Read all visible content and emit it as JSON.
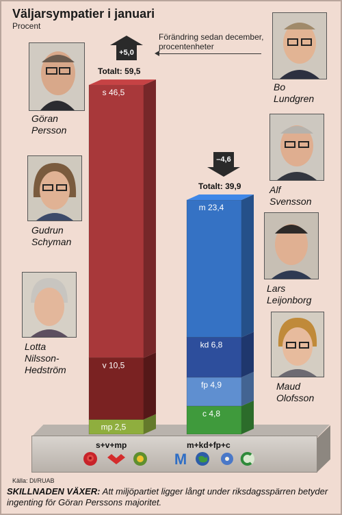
{
  "title": "Väljarsympatier i januari",
  "subtitle": "Procent",
  "change_note": "Förändring sedan december, procentenheter",
  "chart_data": {
    "type": "bar",
    "title": "Väljarsympatier i januari",
    "ylabel": "Procent",
    "categories": [
      "s+v+mp",
      "m+kd+fp+c"
    ],
    "stacks": [
      {
        "group": "s+v+mp",
        "total_label": "Totalt: 59,5",
        "total": 59.5,
        "change_label": "+5,0",
        "change": 5.0,
        "segments": [
          {
            "name": "mp",
            "value": 2.5,
            "label": "mp 2,5",
            "color": "#8fae3e"
          },
          {
            "name": "v",
            "value": 10.5,
            "label": "v 10,5",
            "color": "#7a2222"
          },
          {
            "name": "s",
            "value": 46.5,
            "label": "s 46,5",
            "color": "#a8383a"
          }
        ]
      },
      {
        "group": "m+kd+fp+c",
        "total_label": "Totalt: 39,9",
        "total": 39.9,
        "change_label": "–4,6",
        "change": -4.6,
        "segments": [
          {
            "name": "c",
            "value": 4.8,
            "label": "c 4,8",
            "color": "#3f9a3c"
          },
          {
            "name": "fp",
            "value": 4.9,
            "label": "fp 4,9",
            "color": "#5f8fd0"
          },
          {
            "name": "kd",
            "value": 6.8,
            "label": "kd 6,8",
            "color": "#2d4e9c"
          },
          {
            "name": "m",
            "value": 23.4,
            "label": "m 23,4",
            "color": "#3572c4"
          }
        ]
      }
    ],
    "ylim": [
      0,
      60
    ]
  },
  "people": {
    "left": [
      {
        "name": "Göran\nPersson"
      },
      {
        "name": "Gudrun\nSchyman"
      },
      {
        "name": "Lotta\nNilsson-\nHedström"
      }
    ],
    "right": [
      {
        "name": "Bo\nLundgren"
      },
      {
        "name": "Alf\nSvensson"
      },
      {
        "name": "Lars\nLeijonborg"
      },
      {
        "name": "Maud\nOlofsson"
      }
    ]
  },
  "source": "Källa: DI/RUAB",
  "footnote": {
    "lead": "SKILLNADEN VÄXER:",
    "text": " Att miljöpartiet ligger långt under riksdagsspärren betyder ingenting för Göran Perssons majoritet."
  }
}
